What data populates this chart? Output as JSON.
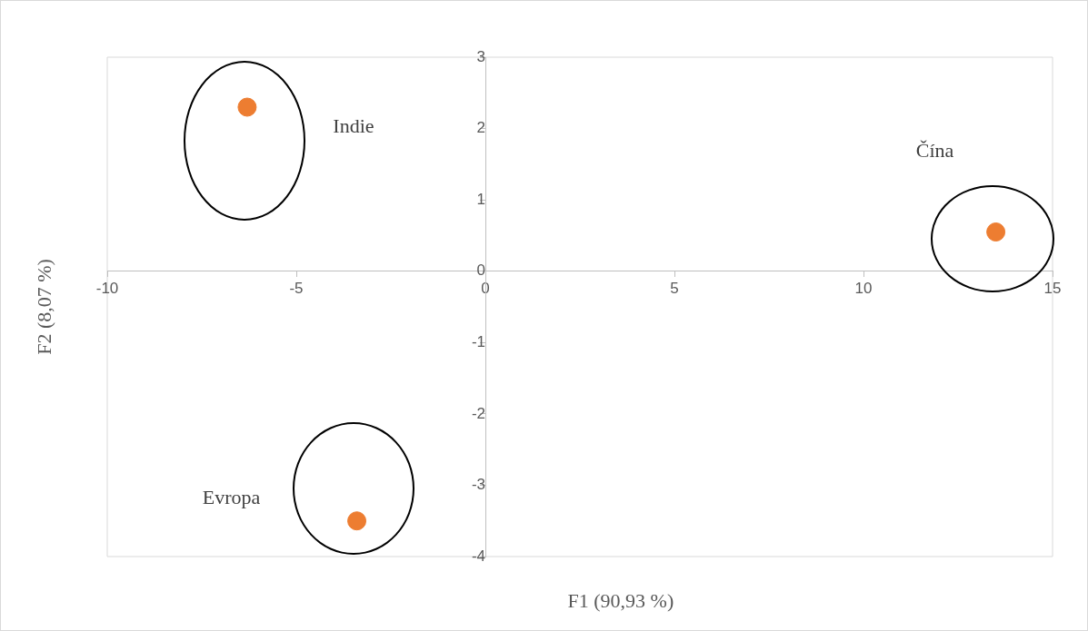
{
  "chart_data": {
    "type": "scatter",
    "xlabel": "F1 (90,93 %)",
    "ylabel": "F2 (8,07 %)",
    "x": [
      -6.3,
      13.5,
      -3.4
    ],
    "series": [
      {
        "color": "#ed7d31",
        "values": [
          2.3,
          0.55,
          -3.5
        ]
      }
    ],
    "xlim": [
      -10,
      15
    ],
    "xticks": [
      -10,
      -5,
      0,
      5,
      10,
      15
    ],
    "ylim": [
      -4,
      3
    ],
    "yticks": [
      -4,
      -3,
      -2,
      -1,
      0,
      1,
      2,
      3
    ],
    "grid": false,
    "legend": false,
    "marker": "circle",
    "annotations": [
      "Indie",
      "Čína",
      "Evropa"
    ]
  }
}
